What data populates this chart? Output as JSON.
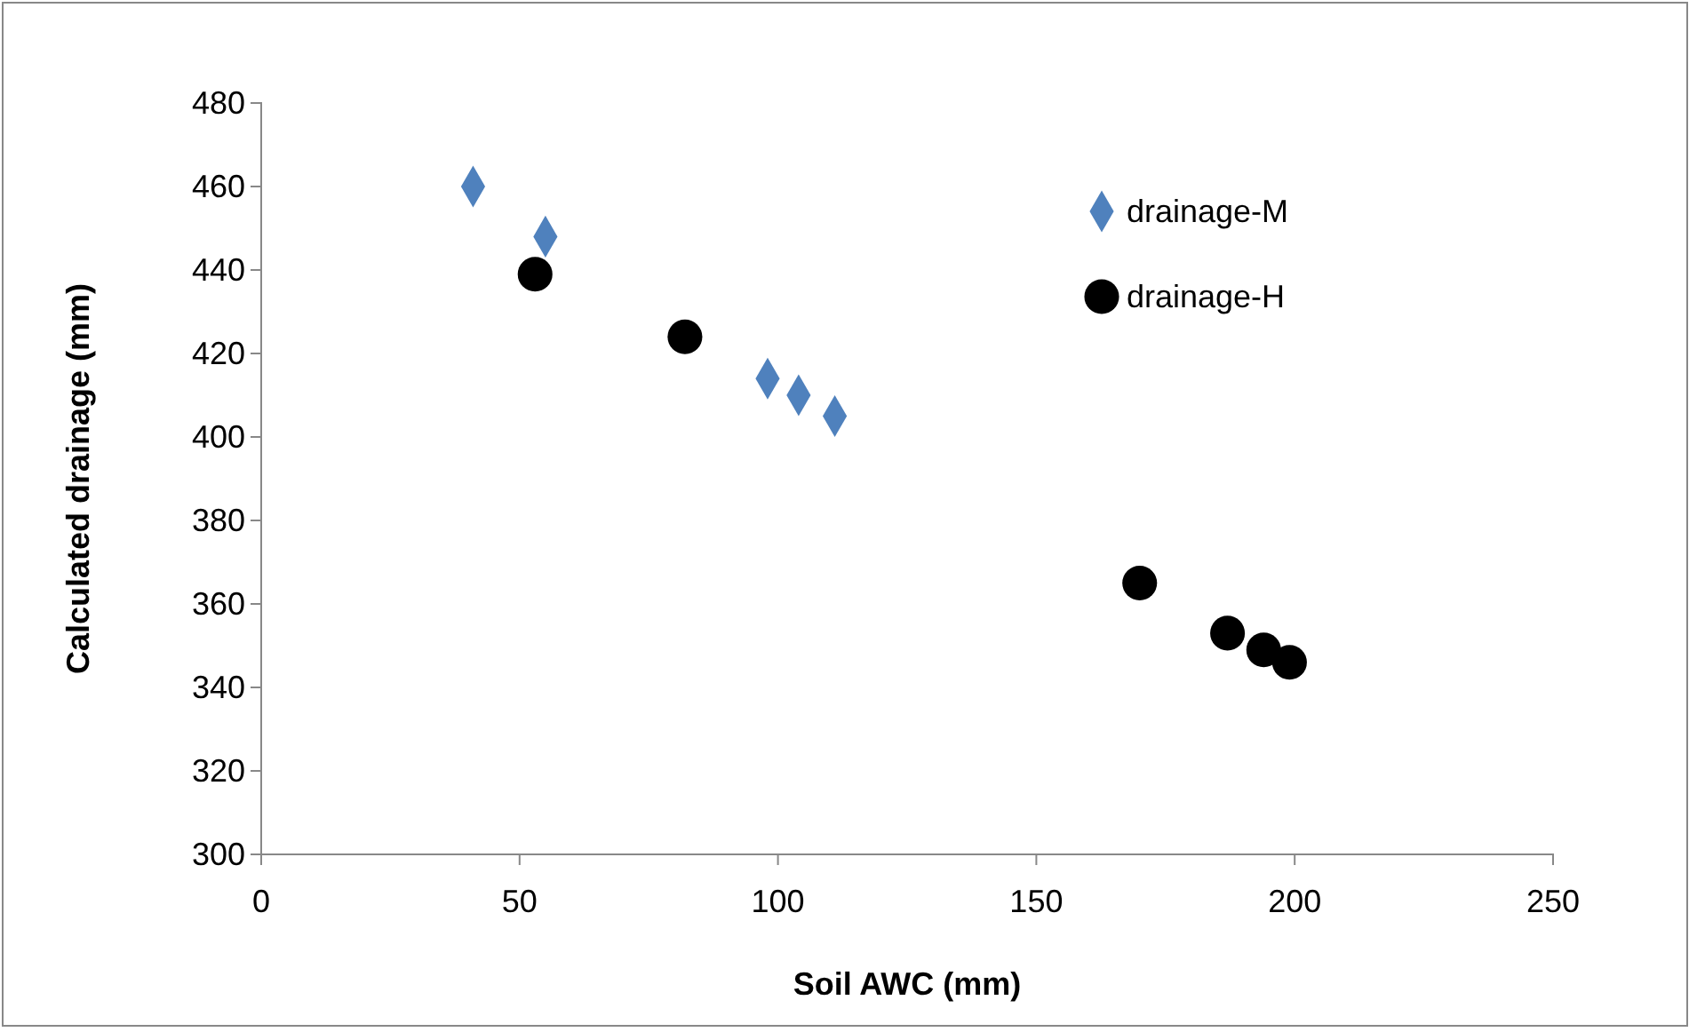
{
  "chart_data": {
    "type": "scatter",
    "xlabel": "Soil AWC (mm)",
    "ylabel": "Calculated drainage  (mm)",
    "xlim": [
      0,
      250
    ],
    "xticks": [
      0,
      50,
      100,
      150,
      200,
      250
    ],
    "ylim": [
      300,
      480
    ],
    "yticks": [
      300,
      320,
      340,
      360,
      380,
      400,
      420,
      440,
      460,
      480
    ],
    "grid": false,
    "legend": "top right",
    "series": [
      {
        "name": "drainage-M",
        "color": "#4f81bd",
        "marker": "diamond",
        "x": [
          41,
          55,
          98,
          104,
          111
        ],
        "values": [
          460,
          448,
          414,
          410,
          405
        ]
      },
      {
        "name": "drainage-H",
        "color": "#000000",
        "marker": "circle",
        "x": [
          53,
          82,
          170,
          187,
          194,
          199
        ],
        "values": [
          439,
          424,
          365,
          353,
          349,
          346
        ]
      }
    ]
  }
}
